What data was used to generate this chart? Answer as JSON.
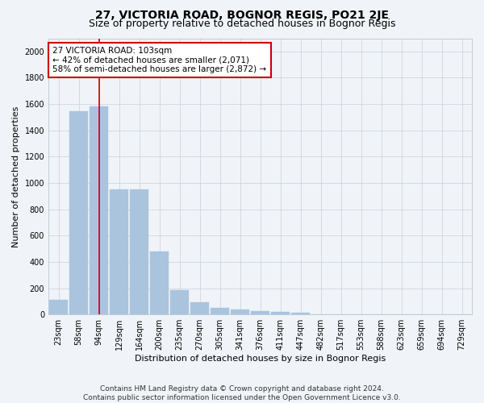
{
  "title": "27, VICTORIA ROAD, BOGNOR REGIS, PO21 2JE",
  "subtitle": "Size of property relative to detached houses in Bognor Regis",
  "xlabel": "Distribution of detached houses by size in Bognor Regis",
  "ylabel": "Number of detached properties",
  "bar_color": "#aac4de",
  "bar_edge_color": "#aac4de",
  "categories": [
    "23sqm",
    "58sqm",
    "94sqm",
    "129sqm",
    "164sqm",
    "200sqm",
    "235sqm",
    "270sqm",
    "305sqm",
    "341sqm",
    "376sqm",
    "411sqm",
    "447sqm",
    "482sqm",
    "517sqm",
    "553sqm",
    "588sqm",
    "623sqm",
    "659sqm",
    "694sqm",
    "729sqm"
  ],
  "values": [
    110,
    1545,
    1580,
    950,
    950,
    480,
    185,
    95,
    50,
    38,
    25,
    18,
    12,
    0,
    0,
    0,
    0,
    0,
    0,
    0,
    0
  ],
  "ylim": [
    0,
    2100
  ],
  "yticks": [
    0,
    200,
    400,
    600,
    800,
    1000,
    1200,
    1400,
    1600,
    1800,
    2000
  ],
  "property_label": "27 VICTORIA ROAD: 103sqm",
  "annotation_line1": "← 42% of detached houses are smaller (2,071)",
  "annotation_line2": "58% of semi-detached houses are larger (2,872) →",
  "annotation_box_color": "#ffffff",
  "annotation_box_edge": "#cc0000",
  "vline_color": "#cc0000",
  "vline_x_index": 2.0,
  "footer1": "Contains HM Land Registry data © Crown copyright and database right 2024.",
  "footer2": "Contains public sector information licensed under the Open Government Licence v3.0.",
  "background_color": "#f0f4f8",
  "plot_bg_color": "#f0f4f8",
  "grid_color": "#c8d0dc",
  "title_fontsize": 10,
  "subtitle_fontsize": 9,
  "label_fontsize": 8,
  "tick_fontsize": 7,
  "footer_fontsize": 6.5
}
